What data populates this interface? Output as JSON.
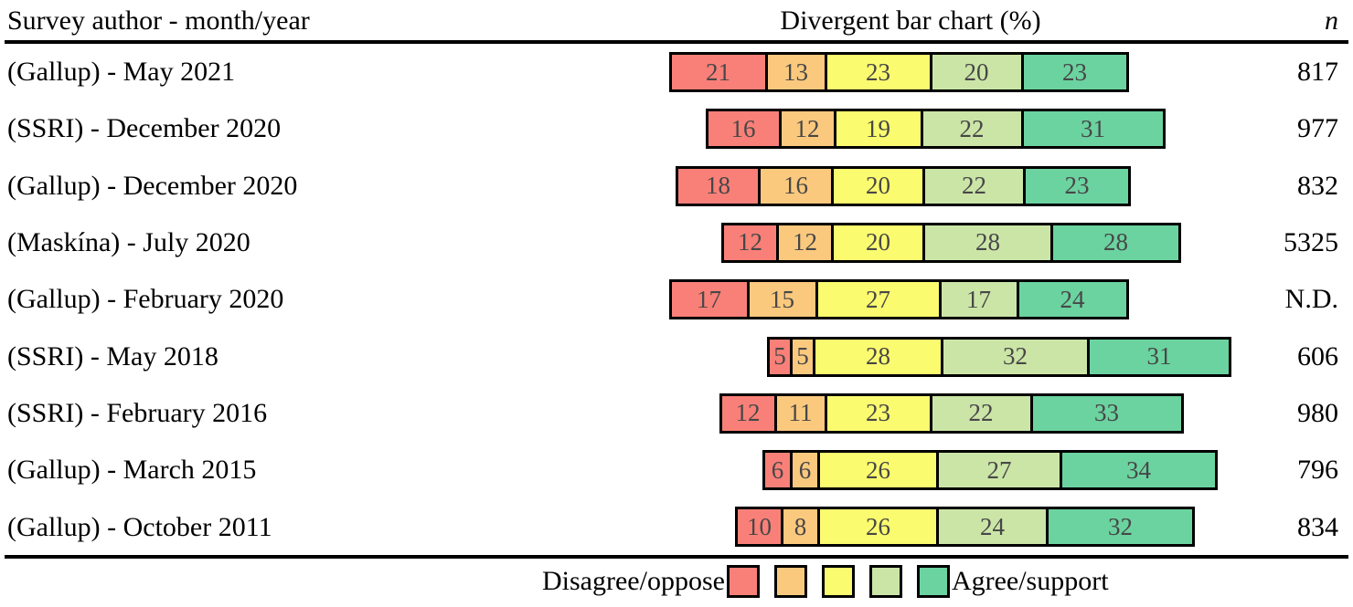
{
  "table": {
    "header": {
      "author_col": "Survey author - month/year",
      "chart_col": "Divergent bar chart (%)",
      "n_col": "n"
    }
  },
  "legend": {
    "left_label": "Disagree/oppose",
    "right_label": "Agree/support"
  },
  "colors": {
    "segments": [
      "#F98078",
      "#FBC97E",
      "#FBFB70",
      "#CBE5A7",
      "#6BD3A0"
    ],
    "border": "#000000",
    "bar_value_text": "#474747",
    "text": "#000000",
    "background": "#FFFFFF"
  },
  "chart_data": {
    "type": "bar",
    "subtype": "diverging stacked Likert percentages, rows centered on neutral-category midpoint",
    "title": "Divergent bar chart (%)",
    "unit": "percent",
    "legend_left": "Disagree/oppose",
    "legend_right": "Agree/support",
    "categories": [
      "(Gallup) - May 2021",
      "(SSRI) - December 2020",
      "(Gallup) - December 2020",
      "(Maskína) - July 2020",
      "(Gallup) - February 2020",
      "(SSRI) - May 2018",
      "(SSRI) - February 2016",
      "(Gallup) - March 2015",
      "(Gallup) - October 2011"
    ],
    "series": [
      {
        "name": "scale-point-1 (Disagree/oppose end, red)",
        "values": [
          21,
          16,
          18,
          12,
          17,
          5,
          12,
          6,
          10
        ]
      },
      {
        "name": "scale-point-2 (orange)",
        "values": [
          13,
          12,
          16,
          12,
          15,
          5,
          11,
          6,
          8
        ]
      },
      {
        "name": "scale-point-3 (neutral, yellow)",
        "values": [
          23,
          19,
          20,
          20,
          27,
          28,
          23,
          26,
          26
        ]
      },
      {
        "name": "scale-point-4 (light green)",
        "values": [
          20,
          22,
          22,
          28,
          17,
          32,
          22,
          27,
          24
        ]
      },
      {
        "name": "scale-point-5 (Agree/support end, green)",
        "values": [
          23,
          31,
          23,
          28,
          24,
          31,
          33,
          34,
          32
        ]
      }
    ],
    "sample_sizes": [
      "817",
      "977",
      "832",
      "5325",
      "N.D.",
      "606",
      "980",
      "796",
      "834"
    ]
  }
}
